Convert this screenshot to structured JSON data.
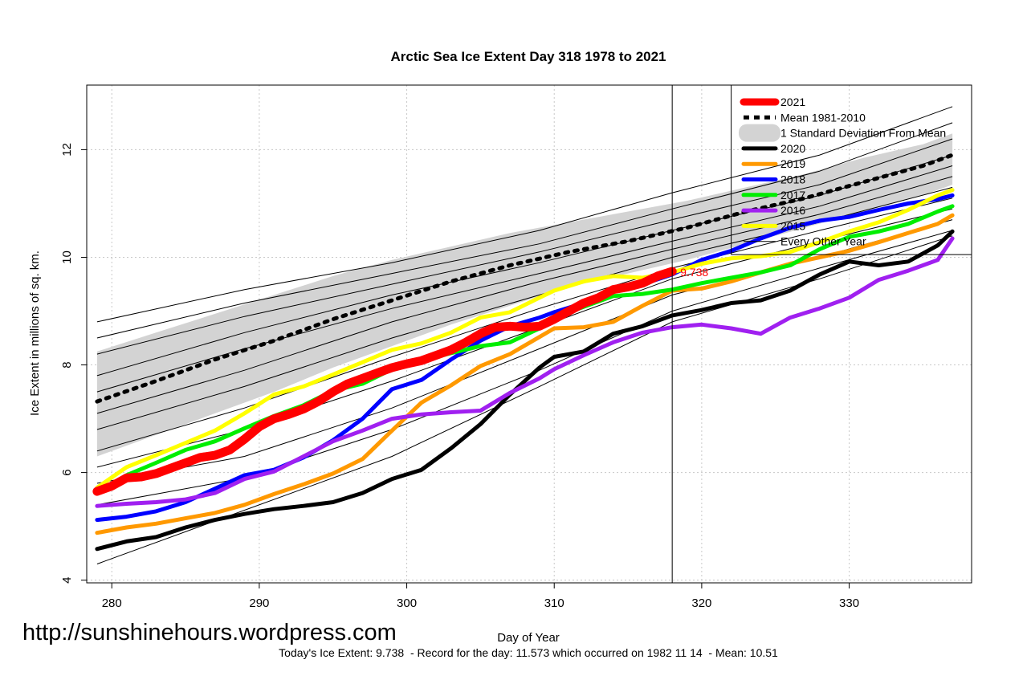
{
  "chart_data": {
    "type": "line",
    "title": "Arctic Sea Ice Extent Day 318 1978 to 2021",
    "xlabel": "Day of Year",
    "ylabel": "Ice Extent in millions of sq. km.",
    "xlim": [
      278.3,
      338.3
    ],
    "ylim": [
      3.95,
      13.2
    ],
    "x_ticks": [
      280,
      290,
      300,
      310,
      320,
      330
    ],
    "y_ticks": [
      4,
      6,
      8,
      10,
      12
    ],
    "grid": true,
    "marker_day": 318,
    "mean_line_level": 10.05,
    "marker_value_label": "9.738",
    "legend_position": "top-right",
    "caption": "Today's Ice Extent: 9.738  - Record for the day: 11.573 which occurred on 1982 11 14  - Mean: 10.51",
    "legend": [
      {
        "label": "2021",
        "color": "#ff0000",
        "style": "thick"
      },
      {
        "label": "Mean 1981-2010",
        "color": "#000000",
        "style": "dotted"
      },
      {
        "label": "1 Standard Deviation From Mean",
        "color": "#d3d3d3",
        "style": "band"
      },
      {
        "label": "2020",
        "color": "#000000",
        "style": "solid"
      },
      {
        "label": "2019",
        "color": "#ff9900",
        "style": "solid"
      },
      {
        "label": "2018",
        "color": "#0000ff",
        "style": "solid"
      },
      {
        "label": "2017",
        "color": "#00ee00",
        "style": "solid"
      },
      {
        "label": "2016",
        "color": "#a020f0",
        "style": "solid"
      },
      {
        "label": "2015",
        "color": "#ffff00",
        "style": "solid"
      },
      {
        "label": "Every Other Year",
        "color": "#000000",
        "style": "thin"
      }
    ],
    "mean": {
      "x": [
        279,
        283,
        287,
        291,
        295,
        299,
        303,
        307,
        311,
        315,
        319,
        323,
        327,
        331,
        335,
        337
      ],
      "values": [
        7.32,
        7.7,
        8.1,
        8.45,
        8.85,
        9.2,
        9.55,
        9.85,
        10.1,
        10.3,
        10.55,
        10.85,
        11.1,
        11.4,
        11.7,
        11.9
      ]
    },
    "std_band": {
      "x": [
        279,
        283,
        287,
        291,
        295,
        299,
        303,
        307,
        311,
        315,
        319,
        323,
        327,
        331,
        335,
        337
      ],
      "upper": [
        8.25,
        8.6,
        8.95,
        9.3,
        9.65,
        9.95,
        10.2,
        10.45,
        10.65,
        10.85,
        11.05,
        11.3,
        11.55,
        11.85,
        12.1,
        12.3
      ],
      "lower": [
        6.3,
        6.7,
        7.1,
        7.5,
        7.95,
        8.35,
        8.75,
        9.1,
        9.45,
        9.7,
        9.95,
        10.25,
        10.55,
        10.85,
        11.15,
        11.35
      ]
    },
    "other_years": [
      {
        "x": [
          279,
          289,
          299,
          309,
          318,
          328,
          337
        ],
        "values": [
          8.8,
          9.4,
          9.9,
          10.5,
          11.2,
          11.9,
          12.8
        ]
      },
      {
        "x": [
          279,
          289,
          299,
          309,
          318,
          328,
          337
        ],
        "values": [
          8.5,
          9.15,
          9.7,
          10.25,
          10.9,
          11.6,
          12.5
        ]
      },
      {
        "x": [
          279,
          289,
          299,
          309,
          318,
          328,
          337
        ],
        "values": [
          8.2,
          8.9,
          9.5,
          10.1,
          10.7,
          11.35,
          12.2
        ]
      },
      {
        "x": [
          279,
          289,
          299,
          309,
          318,
          328,
          337
        ],
        "values": [
          7.8,
          8.6,
          9.3,
          9.9,
          10.5,
          11.15,
          11.9
        ]
      },
      {
        "x": [
          279,
          289,
          299,
          309,
          318,
          328,
          337
        ],
        "values": [
          7.5,
          8.3,
          9.05,
          9.7,
          10.3,
          10.95,
          11.7
        ]
      },
      {
        "x": [
          279,
          289,
          299,
          309,
          318,
          328,
          337
        ],
        "values": [
          7.1,
          7.9,
          8.8,
          9.55,
          10.15,
          10.8,
          11.5
        ]
      },
      {
        "x": [
          279,
          289,
          299,
          309,
          318,
          328,
          337
        ],
        "values": [
          6.8,
          7.6,
          8.5,
          9.3,
          10.0,
          10.65,
          11.3
        ]
      },
      {
        "x": [
          279,
          289,
          299,
          309,
          318,
          328,
          337
        ],
        "values": [
          6.4,
          7.2,
          8.15,
          9.05,
          9.8,
          10.5,
          11.1
        ]
      },
      {
        "x": [
          279,
          289,
          299,
          309,
          318,
          328,
          337
        ],
        "values": [
          6.1,
          6.8,
          7.7,
          8.7,
          9.6,
          10.3,
          10.9
        ]
      },
      {
        "x": [
          279,
          289,
          299,
          309,
          318,
          328,
          337
        ],
        "values": [
          5.8,
          6.3,
          7.2,
          8.3,
          9.3,
          10.0,
          10.7
        ]
      },
      {
        "x": [
          279,
          289,
          299,
          309,
          318,
          328,
          337
        ],
        "values": [
          5.4,
          5.9,
          6.8,
          7.9,
          9.0,
          9.8,
          10.5
        ]
      },
      {
        "x": [
          279,
          289,
          299,
          309,
          318,
          328,
          337
        ],
        "values": [
          4.3,
          5.3,
          6.3,
          7.6,
          8.8,
          9.6,
          10.4
        ]
      }
    ],
    "series": [
      {
        "name": "2020",
        "color": "#000000",
        "width": 5,
        "x": [
          279,
          281,
          283,
          285,
          287,
          289,
          291,
          293,
          295,
          297,
          299,
          301,
          303,
          305,
          307,
          309,
          310,
          312,
          314,
          316,
          318,
          320,
          322,
          324,
          326,
          328,
          330,
          332,
          334,
          336,
          337
        ],
        "values": [
          4.58,
          4.72,
          4.8,
          4.98,
          5.12,
          5.23,
          5.32,
          5.38,
          5.45,
          5.62,
          5.88,
          6.05,
          6.45,
          6.9,
          7.45,
          7.95,
          8.15,
          8.25,
          8.58,
          8.72,
          8.92,
          9.02,
          9.15,
          9.2,
          9.38,
          9.68,
          9.92,
          9.85,
          9.92,
          10.22,
          10.48
        ]
      },
      {
        "name": "2019",
        "color": "#ff9900",
        "width": 5,
        "x": [
          279,
          281,
          283,
          285,
          287,
          289,
          291,
          293,
          295,
          297,
          299,
          301,
          303,
          305,
          307,
          309,
          310,
          312,
          314,
          316,
          318,
          320,
          322,
          324,
          326,
          328,
          330,
          332,
          334,
          336,
          337
        ],
        "values": [
          4.88,
          4.98,
          5.05,
          5.15,
          5.25,
          5.4,
          5.6,
          5.78,
          5.98,
          6.25,
          6.78,
          7.3,
          7.62,
          7.98,
          8.2,
          8.52,
          8.68,
          8.7,
          8.8,
          9.1,
          9.38,
          9.42,
          9.55,
          9.72,
          9.88,
          10.0,
          10.12,
          10.28,
          10.45,
          10.62,
          10.78
        ]
      },
      {
        "name": "2018",
        "color": "#0000ff",
        "width": 5,
        "x": [
          279,
          281,
          283,
          285,
          287,
          289,
          291,
          293,
          295,
          297,
          299,
          301,
          303,
          305,
          307,
          309,
          310,
          312,
          314,
          316,
          318,
          320,
          322,
          324,
          326,
          328,
          330,
          332,
          334,
          336,
          337
        ],
        "values": [
          5.12,
          5.18,
          5.28,
          5.45,
          5.7,
          5.95,
          6.05,
          6.28,
          6.6,
          7.0,
          7.55,
          7.72,
          8.1,
          8.45,
          8.72,
          8.88,
          8.98,
          9.15,
          9.38,
          9.5,
          9.68,
          9.95,
          10.12,
          10.35,
          10.55,
          10.68,
          10.75,
          10.88,
          11.0,
          11.08,
          11.15
        ]
      },
      {
        "name": "2017",
        "color": "#00ee00",
        "width": 5,
        "x": [
          279,
          281,
          283,
          285,
          287,
          289,
          291,
          293,
          295,
          297,
          299,
          301,
          303,
          305,
          307,
          309,
          310,
          312,
          314,
          316,
          318,
          320,
          322,
          324,
          326,
          328,
          330,
          332,
          334,
          336,
          337
        ],
        "values": [
          5.62,
          5.95,
          6.18,
          6.42,
          6.58,
          6.82,
          7.05,
          7.25,
          7.52,
          7.65,
          7.92,
          8.08,
          8.22,
          8.35,
          8.42,
          8.68,
          8.88,
          9.08,
          9.28,
          9.32,
          9.4,
          9.52,
          9.62,
          9.72,
          9.85,
          10.15,
          10.38,
          10.48,
          10.62,
          10.85,
          10.95
        ]
      },
      {
        "name": "2016",
        "color": "#a020f0",
        "width": 5,
        "x": [
          279,
          281,
          283,
          285,
          287,
          289,
          291,
          293,
          295,
          297,
          299,
          301,
          303,
          305,
          307,
          309,
          310,
          312,
          314,
          316,
          318,
          320,
          322,
          324,
          326,
          328,
          330,
          332,
          334,
          336,
          337
        ],
        "values": [
          5.38,
          5.42,
          5.45,
          5.5,
          5.62,
          5.88,
          6.02,
          6.3,
          6.58,
          6.78,
          7.0,
          7.08,
          7.12,
          7.15,
          7.48,
          7.75,
          7.92,
          8.18,
          8.42,
          8.6,
          8.7,
          8.75,
          8.68,
          8.58,
          8.88,
          9.05,
          9.25,
          9.58,
          9.75,
          9.95,
          10.35
        ]
      },
      {
        "name": "2015",
        "color": "#ffff00",
        "width": 5,
        "x": [
          279,
          281,
          283,
          285,
          287,
          289,
          291,
          293,
          295,
          297,
          299,
          301,
          303,
          305,
          307,
          309,
          310,
          312,
          314,
          316,
          318,
          320,
          322,
          324,
          326,
          328,
          330,
          332,
          334,
          336,
          337
        ],
        "values": [
          5.72,
          6.1,
          6.32,
          6.55,
          6.78,
          7.1,
          7.45,
          7.6,
          7.82,
          8.05,
          8.28,
          8.4,
          8.6,
          8.88,
          8.98,
          9.25,
          9.38,
          9.55,
          9.65,
          9.62,
          9.72,
          9.88,
          9.98,
          10.02,
          10.1,
          10.28,
          10.48,
          10.65,
          10.88,
          11.15,
          11.25
        ]
      },
      {
        "name": "2021",
        "color": "#ff0000",
        "width": 11,
        "x": [
          279,
          280,
          281,
          282,
          283,
          284,
          285,
          286,
          287,
          288,
          289,
          290,
          291,
          292,
          293,
          294,
          295,
          296,
          297,
          298,
          299,
          300,
          301,
          302,
          303,
          304,
          305,
          306,
          307,
          308,
          309,
          310,
          311,
          312,
          313,
          314,
          315,
          316,
          317,
          318
        ],
        "values": [
          5.65,
          5.75,
          5.9,
          5.92,
          5.98,
          6.08,
          6.18,
          6.28,
          6.32,
          6.42,
          6.62,
          6.85,
          7.0,
          7.08,
          7.18,
          7.32,
          7.5,
          7.65,
          7.75,
          7.85,
          7.95,
          8.02,
          8.08,
          8.18,
          8.28,
          8.42,
          8.58,
          8.7,
          8.72,
          8.7,
          8.72,
          8.85,
          9.0,
          9.15,
          9.25,
          9.4,
          9.45,
          9.52,
          9.65,
          9.738
        ]
      }
    ]
  },
  "watermark": "http://sunshinehours.wordpress.com"
}
